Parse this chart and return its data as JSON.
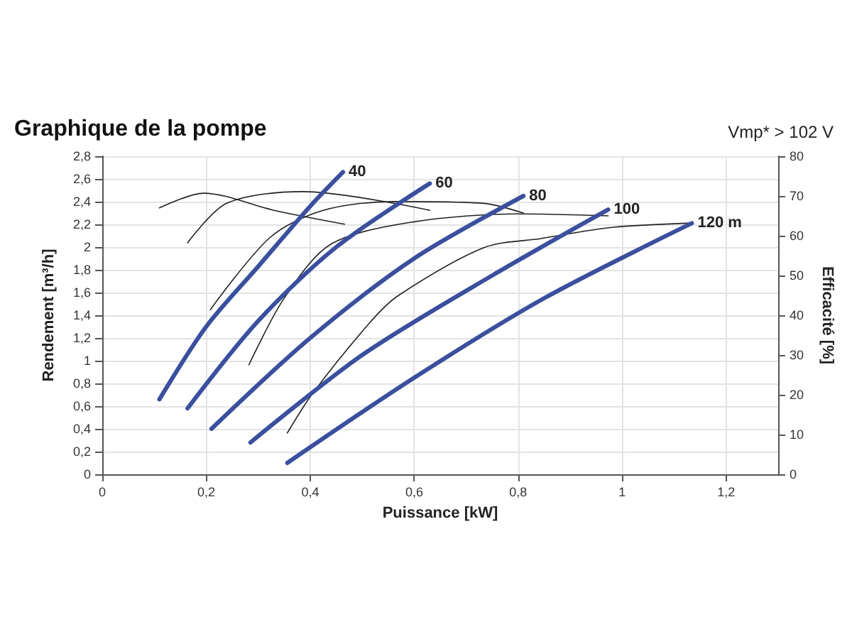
{
  "chart_data": {
    "type": "line",
    "title": "Graphique de la pompe",
    "subtitle": "Vmp* > 102 V",
    "xlabel": "Puissance [kW]",
    "ylabel": "Rendement [m³/h]",
    "y2label": "Efficacité [%]",
    "xlim": [
      0,
      1.3
    ],
    "xticks": [
      0,
      {
        "value": 0.2,
        "label": "0,2"
      },
      {
        "value": 0.4,
        "label": "0,4"
      },
      {
        "value": 0.6,
        "label": "0,6"
      },
      {
        "value": 0.8,
        "label": "0,8"
      },
      1,
      {
        "value": 1.2,
        "label": "1,2"
      }
    ],
    "ylim": [
      0,
      2.8
    ],
    "yticks": [
      0,
      {
        "value": 0.2,
        "label": "0,2"
      },
      {
        "value": 0.4,
        "label": "0,4"
      },
      {
        "value": 0.6,
        "label": "0,6"
      },
      {
        "value": 0.8,
        "label": "0,8"
      },
      1,
      {
        "value": 1.2,
        "label": "1,2"
      },
      {
        "value": 1.4,
        "label": "1,4"
      },
      {
        "value": 1.6,
        "label": "1,6"
      },
      {
        "value": 1.8,
        "label": "1,8"
      },
      2,
      {
        "value": 2.2,
        "label": "2,2"
      },
      {
        "value": 2.4,
        "label": "2,4"
      },
      {
        "value": 2.6,
        "label": "2,6"
      },
      {
        "value": 2.8,
        "label": "2,8"
      }
    ],
    "y2lim": [
      0,
      80
    ],
    "y2ticks": [
      0,
      10,
      20,
      30,
      40,
      50,
      60,
      70,
      80
    ],
    "grid": true,
    "legend": false,
    "marker": "none",
    "line_style": "solid",
    "series": [
      {
        "axis": "y2",
        "color": "#222222",
        "x": [
          0.11,
          0.195,
          0.33,
          0.466
        ],
        "values": [
          67,
          70.7,
          66.4,
          62.9
        ]
      },
      {
        "axis": "y2",
        "color": "#222222",
        "x": [
          0.164,
          0.24,
          0.386,
          0.63
        ],
        "values": [
          58.2,
          68.2,
          71.1,
          66.4
        ]
      },
      {
        "axis": "y2",
        "color": "#222222",
        "x": [
          0.208,
          0.323,
          0.425,
          0.56,
          0.73,
          0.81
        ],
        "values": [
          41.4,
          59.6,
          66.4,
          68.6,
          68.2,
          65.7
        ]
      },
      {
        "axis": "y2",
        "color": "#222222",
        "x": [
          0.282,
          0.35,
          0.44,
          0.6,
          0.8,
          0.973
        ],
        "values": [
          27.5,
          44.3,
          57.9,
          63.5,
          65.5,
          65
        ]
      },
      {
        "axis": "y2",
        "color": "#222222",
        "x": [
          0.356,
          0.405,
          0.515,
          0.57,
          0.734,
          0.844,
          0.98,
          1.134
        ],
        "values": [
          10.4,
          20.4,
          38.2,
          45,
          57,
          59.3,
          62.1,
          63.2
        ]
      },
      {
        "name": "40",
        "color": "#3a4f9e",
        "x": [
          0.11,
          0.2,
          0.3,
          0.4,
          0.463
        ],
        "values": [
          0.66,
          1.3,
          1.83,
          2.36,
          2.66
        ]
      },
      {
        "name": "60",
        "color": "#3a4f9e",
        "x": [
          0.164,
          0.3,
          0.45,
          0.63
        ],
        "values": [
          0.58,
          1.35,
          2.0,
          2.56
        ]
      },
      {
        "name": "80",
        "color": "#3a4f9e",
        "x": [
          0.21,
          0.4,
          0.6,
          0.81
        ],
        "values": [
          0.4,
          1.2,
          1.9,
          2.45
        ]
      },
      {
        "name": "100",
        "color": "#3a4f9e",
        "x": [
          0.285,
          0.5,
          0.75,
          0.973
        ],
        "values": [
          0.28,
          1.05,
          1.75,
          2.33
        ]
      },
      {
        "name": "120 m",
        "color": "#3a4f9e",
        "x": [
          0.356,
          0.6,
          0.85,
          1.134
        ],
        "values": [
          0.1,
          0.85,
          1.55,
          2.21
        ]
      }
    ]
  }
}
